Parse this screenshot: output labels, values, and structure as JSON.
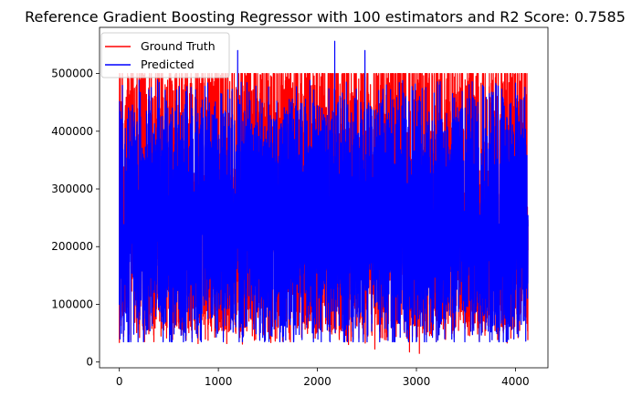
{
  "chart_data": {
    "type": "line",
    "title": "Reference Gradient Boosting Regressor with 100 estimators and R2 Score: 0.7585",
    "xlabel": "",
    "ylabel": "",
    "xlim": [
      -200,
      4328
    ],
    "ylim": [
      -10000,
      580000
    ],
    "x_ticks": [
      0,
      1000,
      2000,
      3000,
      4000
    ],
    "y_ticks": [
      0,
      100000,
      200000,
      300000,
      400000,
      500000
    ],
    "x_tick_labels": [
      "0",
      "1000",
      "2000",
      "3000",
      "4000"
    ],
    "y_tick_labels": [
      "0",
      "100000",
      "200000",
      "300000",
      "400000",
      "500000"
    ],
    "grid": false,
    "legend_position": "upper-left",
    "n_points": 4128,
    "series": [
      {
        "name": "Ground Truth",
        "color": "#ff0000",
        "range": [
          14999,
          500001
        ],
        "typical_band": [
          70000,
          500001
        ],
        "cap_value": 500001
      },
      {
        "name": "Predicted",
        "color": "#0000ff",
        "range": [
          35000,
          556000
        ],
        "typical_band": [
          60000,
          460000
        ]
      }
    ],
    "notable_points": [
      {
        "series": "Ground Truth",
        "x": 3030,
        "y": 14999
      },
      {
        "series": "Ground Truth",
        "x": 2930,
        "y": 17500
      },
      {
        "series": "Ground Truth",
        "x": 2580,
        "y": 22500
      },
      {
        "series": "Ground Truth",
        "x": 795,
        "y": 32000
      },
      {
        "series": "Ground Truth",
        "x": 1085,
        "y": 32000
      },
      {
        "series": "Predicted",
        "x": 2175,
        "y": 556000
      },
      {
        "series": "Predicted",
        "x": 1195,
        "y": 540000
      },
      {
        "series": "Predicted",
        "x": 2480,
        "y": 540000
      },
      {
        "series": "Predicted",
        "x": 1680,
        "y": 38000
      }
    ]
  }
}
